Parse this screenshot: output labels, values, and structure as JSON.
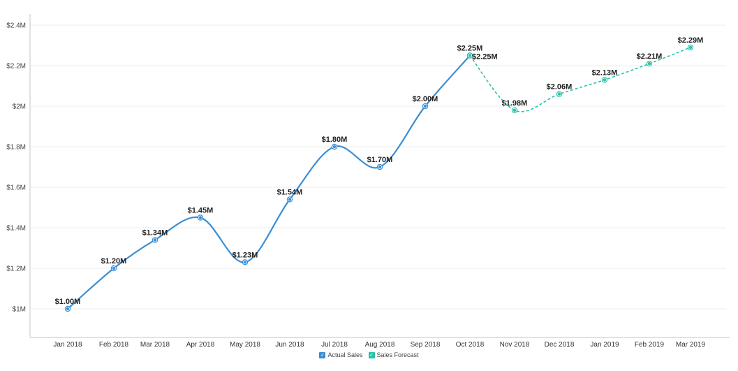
{
  "chart_data": {
    "type": "line",
    "title": "",
    "xlabel": "",
    "ylabel": "",
    "ylim": [
      0.9,
      2.4
    ],
    "y_ticks": [
      "$1M",
      "$1.2M",
      "$1.4M",
      "$1.6M",
      "$1.8M",
      "$2M",
      "$2.2M",
      "$2.4M"
    ],
    "y_tick_values": [
      1.0,
      1.2,
      1.4,
      1.6,
      1.8,
      2.0,
      2.2,
      2.4
    ],
    "categories": [
      "Jan 2018",
      "Feb 2018",
      "Mar 2018",
      "Apr 2018",
      "May 2018",
      "Jun 2018",
      "Jul 2018",
      "Aug 2018",
      "Sep 2018",
      "Oct 2018",
      "Nov 2018",
      "Dec 2018",
      "Jan 2019",
      "Feb 2019",
      "Mar 2019"
    ],
    "grid": true,
    "legend_position": "bottom",
    "series": [
      {
        "name": "Actual Sales",
        "color": "#3a8ed4",
        "style": "solid",
        "values": [
          1.0,
          1.2,
          1.34,
          1.45,
          1.23,
          1.54,
          1.8,
          1.7,
          2.0,
          2.25,
          null,
          null,
          null,
          null,
          null
        ],
        "labels": [
          "$1.00M",
          "$1.20M",
          "$1.34M",
          "$1.45M",
          "$1.23M",
          "$1.54M",
          "$1.80M",
          "$1.70M",
          "$2.00M",
          "$2.25M",
          null,
          null,
          null,
          null,
          null
        ]
      },
      {
        "name": "Sales Forecast",
        "color": "#26c2a9",
        "style": "dashed",
        "values": [
          null,
          null,
          null,
          null,
          null,
          null,
          null,
          null,
          null,
          2.25,
          1.98,
          2.06,
          2.13,
          2.21,
          2.29
        ],
        "labels": [
          null,
          null,
          null,
          null,
          null,
          null,
          null,
          null,
          null,
          "$2.25M",
          "$1.98M",
          "$2.06M",
          "$2.13M",
          "$2.21M",
          "$2.29M"
        ]
      }
    ]
  },
  "legend": {
    "items": [
      {
        "label": "Actual Sales",
        "color": "#3a8ed4",
        "checked": true
      },
      {
        "label": "Sales Forecast",
        "color": "#26c2a9",
        "checked": true
      }
    ],
    "check_glyph": "✓"
  }
}
